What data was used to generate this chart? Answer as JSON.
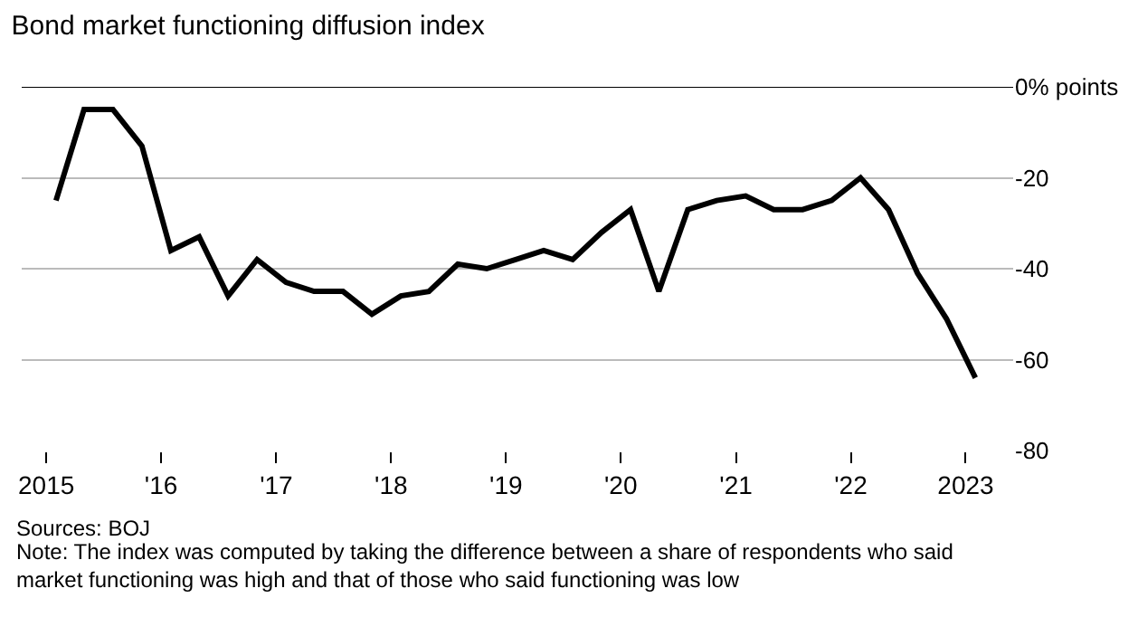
{
  "chart_data": {
    "type": "line",
    "title": "Bond market functioning diffusion index",
    "x": [
      "2015-02",
      "2015-05",
      "2015-08",
      "2015-11",
      "2016-02",
      "2016-05",
      "2016-08",
      "2016-11",
      "2017-02",
      "2017-05",
      "2017-08",
      "2017-11",
      "2018-02",
      "2018-05",
      "2018-08",
      "2018-11",
      "2019-02",
      "2019-05",
      "2019-08",
      "2019-11",
      "2020-02",
      "2020-05",
      "2020-08",
      "2020-11",
      "2021-02",
      "2021-05",
      "2021-08",
      "2021-11",
      "2022-02",
      "2022-05",
      "2022-08",
      "2022-11",
      "2023-02"
    ],
    "series": [
      {
        "color": "#000000",
        "values": [
          -25,
          -5,
          -5,
          -13,
          -36,
          -33,
          -46,
          -38,
          -43,
          -45,
          -45,
          -50,
          -46,
          -45,
          -39,
          -40,
          -38,
          -36,
          -38,
          -32,
          -27,
          -45,
          -27,
          -25,
          -24,
          -27,
          -27,
          -25,
          -20,
          -27,
          -41,
          -51,
          -64
        ]
      }
    ],
    "xlim": [
      "2014-10-15",
      "2023-06-01"
    ],
    "xticks": [
      {
        "value": "2015-01-01",
        "label": "2015"
      },
      {
        "value": "2016-01-01",
        "label": "'16"
      },
      {
        "value": "2017-01-01",
        "label": "'17"
      },
      {
        "value": "2018-01-01",
        "label": "'18"
      },
      {
        "value": "2019-01-01",
        "label": "'19"
      },
      {
        "value": "2020-01-01",
        "label": "'20"
      },
      {
        "value": "2021-01-01",
        "label": "'21"
      },
      {
        "value": "2022-01-01",
        "label": "'22"
      },
      {
        "value": "2023-01-01",
        "label": "2023"
      }
    ],
    "ylim": [
      -80,
      0
    ],
    "yticks": [
      {
        "value": 0,
        "label": "0% points"
      },
      -20,
      -40,
      -60,
      -80
    ],
    "grid": "y",
    "marker": "none",
    "line_style": "solid",
    "annotations": [
      "Sources: BOJ",
      "Note: The index was computed by taking the difference between a share of respondents who said market functioning was high and that of those who said functioning was low"
    ]
  }
}
